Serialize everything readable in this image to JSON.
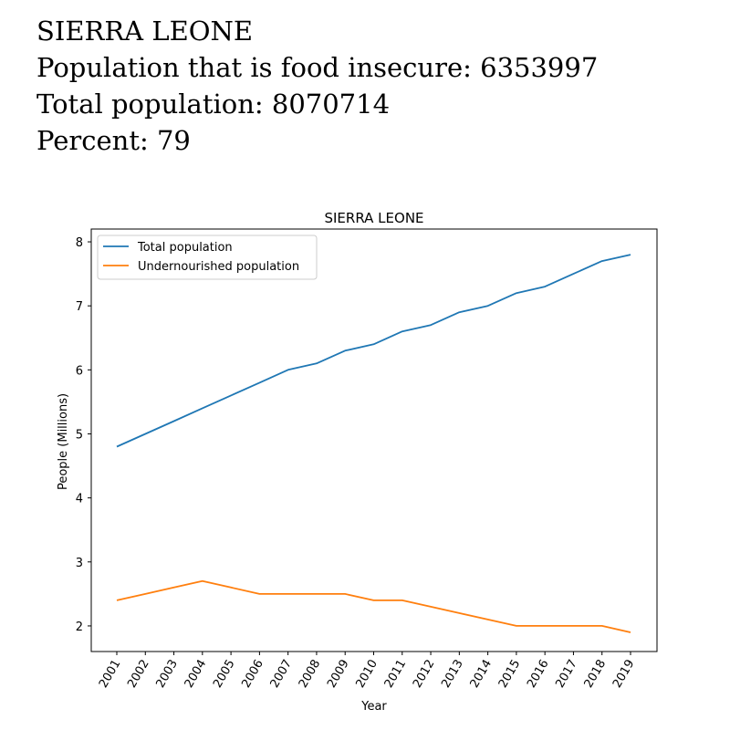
{
  "header": {
    "country": "SIERRA LEONE",
    "line_insecure": "Population that is food insecure: 6353997",
    "line_total": "Total population: 8070714",
    "line_percent": "Percent: 79"
  },
  "chart_data": {
    "type": "line",
    "title": "SIERRA LEONE",
    "xlabel": "Year",
    "ylabel": "People (Millions)",
    "categories": [
      "2001",
      "2002",
      "2003",
      "2004",
      "2005",
      "2006",
      "2007",
      "2008",
      "2009",
      "2010",
      "2011",
      "2012",
      "2013",
      "2014",
      "2015",
      "2016",
      "2017",
      "2018",
      "2019"
    ],
    "yticks": [
      2,
      3,
      4,
      5,
      6,
      7,
      8
    ],
    "ylim": [
      1.6,
      8.2
    ],
    "grid": false,
    "legend_position": "top-left",
    "series": [
      {
        "name": "Total population",
        "color": "#1f77b4",
        "values": [
          4.8,
          5.0,
          5.2,
          5.4,
          5.6,
          5.8,
          6.0,
          6.1,
          6.3,
          6.4,
          6.6,
          6.7,
          6.9,
          7.0,
          7.2,
          7.3,
          7.5,
          7.7,
          7.8
        ]
      },
      {
        "name": "Undernourished population",
        "color": "#ff7f0e",
        "values": [
          2.4,
          2.5,
          2.6,
          2.7,
          2.6,
          2.5,
          2.5,
          2.5,
          2.5,
          2.4,
          2.4,
          2.3,
          2.2,
          2.1,
          2.0,
          2.0,
          2.0,
          2.0,
          1.9
        ]
      }
    ]
  }
}
